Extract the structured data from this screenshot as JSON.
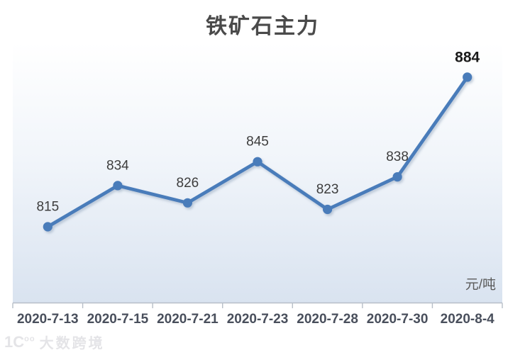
{
  "chart_data": {
    "type": "line",
    "title": "铁矿石主力",
    "unit": "元/吨",
    "categories": [
      "2020-7-13",
      "2020-7-15",
      "2020-7-21",
      "2020-7-23",
      "2020-7-28",
      "2020-7-30",
      "2020-8-4"
    ],
    "values": [
      815,
      834,
      826,
      845,
      823,
      838,
      884
    ],
    "ylim": [
      780,
      900
    ],
    "grid": false,
    "legend": "none",
    "emphasized_point_index": 6,
    "style": {
      "line_color": "#4a7cba",
      "marker_color": "#4a7cba",
      "data_label_color": "#3d3d3d",
      "emphasis_label_color": "#1a1a1a",
      "axis_color": "#b7bec8",
      "tick_label_color": "#494f5c",
      "plot_fill_top": "#ffffff",
      "plot_fill_mid": "#f1f5fa",
      "plot_fill_bottom": "#d9e3f0",
      "shadow_color": "#7d93ad"
    }
  },
  "watermark": {
    "logo": "1C",
    "logo_sup": "oo",
    "text": "大数跨境"
  }
}
